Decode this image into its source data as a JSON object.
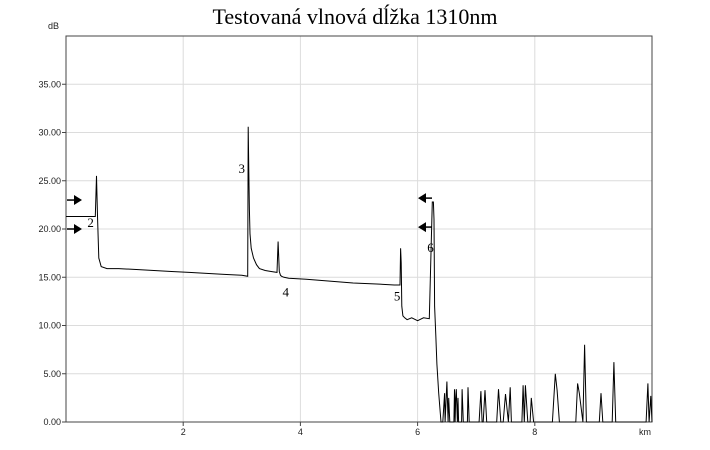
{
  "title": "Testovaná vlnová dĺžka 1310nm",
  "chart_data": {
    "type": "line",
    "title": "Testovaná vlnová dĺžka 1310nm",
    "ylabel": "dB",
    "xlabel": "km",
    "xlim": [
      0,
      10
    ],
    "ylim": [
      0,
      40
    ],
    "grid": true,
    "x_ticks": [
      {
        "value": 2,
        "label": "2"
      },
      {
        "value": 4,
        "label": "4"
      },
      {
        "value": 6,
        "label": "6"
      },
      {
        "value": 8,
        "label": "8"
      }
    ],
    "y_ticks": [
      {
        "value": 0,
        "label": "0.00"
      },
      {
        "value": 5,
        "label": "5.00"
      },
      {
        "value": 10,
        "label": "10.00"
      },
      {
        "value": 15,
        "label": "15.00"
      },
      {
        "value": 20,
        "label": "20.00"
      },
      {
        "value": 25,
        "label": "25.00"
      },
      {
        "value": 30,
        "label": "30.00"
      },
      {
        "value": 35,
        "label": "35.00"
      }
    ],
    "series": [
      {
        "color": "#000000",
        "x": [
          0.0,
          0.45,
          0.45,
          0.5,
          0.52,
          0.53,
          0.54,
          0.56,
          0.6,
          0.7,
          0.9,
          1.2,
          1.5,
          1.8,
          2.1,
          2.4,
          2.7,
          3.0,
          3.1,
          3.11,
          3.12,
          3.13,
          3.14,
          3.16,
          3.2,
          3.25,
          3.3,
          3.4,
          3.5,
          3.6,
          3.62,
          3.64,
          3.66,
          3.68,
          3.72,
          3.8,
          4.1,
          4.5,
          4.9,
          5.3,
          5.6,
          5.7,
          5.71,
          5.72,
          5.73,
          5.75,
          5.78,
          5.82,
          5.9,
          6.0,
          6.1,
          6.2,
          6.25,
          6.27,
          6.28,
          6.29,
          6.31,
          6.33,
          6.36,
          6.4,
          6.43,
          6.46,
          6.47,
          6.5,
          6.52,
          6.53,
          6.55,
          6.62,
          6.63,
          6.64,
          6.65,
          6.66,
          6.68,
          6.69,
          6.7,
          6.72,
          6.75,
          6.76,
          6.78,
          6.82,
          6.85,
          6.86,
          6.88,
          6.9,
          7.05,
          7.08,
          7.1,
          7.12,
          7.15,
          7.18,
          7.2,
          7.35,
          7.38,
          7.42,
          7.46,
          7.5,
          7.55,
          7.58,
          7.6,
          7.64,
          7.7,
          7.78,
          7.8,
          7.82,
          7.84,
          7.88,
          7.92,
          7.94,
          7.98,
          8.3,
          8.35,
          8.38,
          8.42,
          8.7,
          8.73,
          8.76,
          8.82,
          8.85,
          8.88,
          9.1,
          9.13,
          9.16,
          9.32,
          9.35,
          9.38,
          9.9,
          9.93,
          9.95,
          9.98,
          10.0
        ],
        "y": [
          21.3,
          21.3,
          21.3,
          21.3,
          25.5,
          23.0,
          21.0,
          17.0,
          16.1,
          15.9,
          15.9,
          15.8,
          15.7,
          15.6,
          15.5,
          15.4,
          15.3,
          15.2,
          15.1,
          30.6,
          26.0,
          22.0,
          19.5,
          18.0,
          17.0,
          16.3,
          15.9,
          15.7,
          15.6,
          15.5,
          18.7,
          15.6,
          15.2,
          15.1,
          15.0,
          14.9,
          14.8,
          14.6,
          14.4,
          14.3,
          14.2,
          14.2,
          18.0,
          16.5,
          12.0,
          11.0,
          10.8,
          10.6,
          10.8,
          10.5,
          10.8,
          10.7,
          22.8,
          22.8,
          21.0,
          12.0,
          9.0,
          6.0,
          3.0,
          0.0,
          0.0,
          3.0,
          0.0,
          4.2,
          0.0,
          2.5,
          0.0,
          0.0,
          3.4,
          0.0,
          2.5,
          3.4,
          0.0,
          2.5,
          0.0,
          0.0,
          0.0,
          3.4,
          0.0,
          0.0,
          0.0,
          3.6,
          0.0,
          0.0,
          0.0,
          3.2,
          0.0,
          0.0,
          3.3,
          0.0,
          0.0,
          0.0,
          3.4,
          0.0,
          0.0,
          2.9,
          0.0,
          3.6,
          0.0,
          0.0,
          0.0,
          0.0,
          3.8,
          0.0,
          3.8,
          0.0,
          0.0,
          2.5,
          0.0,
          0.0,
          5.0,
          3.3,
          0.0,
          0.0,
          4.0,
          3.0,
          0.0,
          8.0,
          0.0,
          0.0,
          3.0,
          0.0,
          0.0,
          6.2,
          0.0,
          0.0,
          4.0,
          0.0,
          2.7,
          0.0
        ]
      }
    ],
    "event_markers": [
      {
        "label": "2",
        "x": 0.42,
        "y": 20.2
      },
      {
        "label": "3",
        "x": 3.0,
        "y": 25.8
      },
      {
        "label": "4",
        "x": 3.75,
        "y": 13.0
      },
      {
        "label": "5",
        "x": 5.65,
        "y": 12.6
      },
      {
        "label": "6",
        "x": 6.22,
        "y": 17.6
      }
    ],
    "cursor_arrows": [
      {
        "direction": "right",
        "x": 0.0,
        "y": 23.0
      },
      {
        "direction": "right",
        "x": 0.0,
        "y": 20.0
      },
      {
        "direction": "left",
        "x": 6.28,
        "y": 23.2
      },
      {
        "direction": "left",
        "x": 6.28,
        "y": 20.2
      }
    ]
  }
}
